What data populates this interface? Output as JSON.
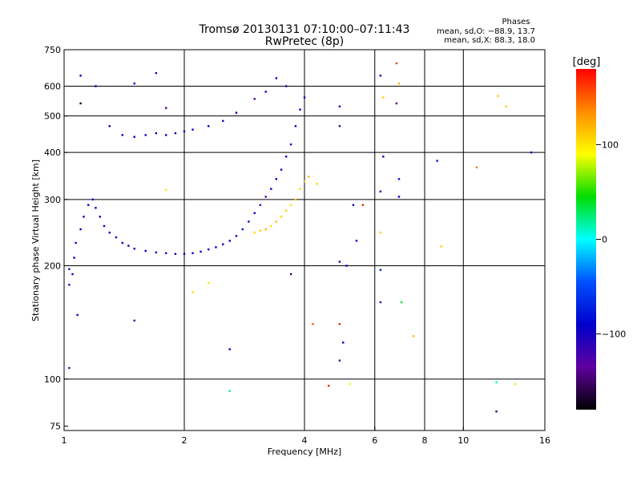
{
  "chart_data": {
    "type": "scatter",
    "title": "Tromsø 20130131 07:10:00–07:11:43",
    "subtitle": "RwPretec (8p)",
    "xlabel": "Frequency [MHz]",
    "ylabel": "Stationary phase Virtual Height [km]",
    "x_scale": "log",
    "y_scale": "log",
    "xlim": [
      1,
      16
    ],
    "ylim": [
      73,
      750
    ],
    "x_ticks": [
      1,
      2,
      4,
      6,
      8,
      10,
      16
    ],
    "x_ticklabels": [
      "1",
      "2",
      "4",
      "6",
      "8",
      "10",
      "16"
    ],
    "y_ticks": [
      75,
      100,
      200,
      300,
      400,
      500,
      600,
      750
    ],
    "y_ticklabels": [
      "75",
      "100",
      "200",
      "300",
      "400",
      "500",
      "600",
      "750"
    ],
    "grid": true,
    "stats": {
      "title": "Phases",
      "line_o": "mean, sd,O: −88.9, 13.7",
      "line_x": "mean, sd,X: 88.3, 18.0"
    },
    "colorbar": {
      "label": "[deg]",
      "range": [
        -180,
        180
      ],
      "ticks": [
        100,
        0,
        -100
      ],
      "ticklabels": [
        "100",
        "0",
        "−100"
      ],
      "colors": [
        "#ff0000",
        "#ff8c00",
        "#ffff00",
        "#00dd00",
        "#00ffff",
        "#0050ff",
        "#0000cc",
        "#6000a0",
        "#000000"
      ]
    },
    "series": [
      {
        "values": [
          {
            "x": 1.03,
            "y": 196,
            "phase": -80
          },
          {
            "x": 1.03,
            "y": 178,
            "phase": -80
          },
          {
            "x": 1.05,
            "y": 190,
            "phase": -85
          },
          {
            "x": 1.06,
            "y": 210,
            "phase": -90
          },
          {
            "x": 1.07,
            "y": 230,
            "phase": -90
          },
          {
            "x": 1.1,
            "y": 250,
            "phase": -95
          },
          {
            "x": 1.12,
            "y": 270,
            "phase": -95
          },
          {
            "x": 1.15,
            "y": 290,
            "phase": -90
          },
          {
            "x": 1.18,
            "y": 300,
            "phase": -88
          },
          {
            "x": 1.2,
            "y": 285,
            "phase": -92
          },
          {
            "x": 1.23,
            "y": 270,
            "phase": -95
          },
          {
            "x": 1.26,
            "y": 255,
            "phase": -93
          },
          {
            "x": 1.3,
            "y": 245,
            "phase": -95
          },
          {
            "x": 1.35,
            "y": 238,
            "phase": -92
          },
          {
            "x": 1.4,
            "y": 230,
            "phase": -95
          },
          {
            "x": 1.45,
            "y": 226,
            "phase": -90
          },
          {
            "x": 1.5,
            "y": 222,
            "phase": -95
          },
          {
            "x": 1.6,
            "y": 219,
            "phase": -92
          },
          {
            "x": 1.7,
            "y": 217,
            "phase": -95
          },
          {
            "x": 1.8,
            "y": 216,
            "phase": -90
          },
          {
            "x": 1.9,
            "y": 215,
            "phase": -95
          },
          {
            "x": 2.0,
            "y": 215,
            "phase": -92
          },
          {
            "x": 2.1,
            "y": 216,
            "phase": -95
          },
          {
            "x": 2.2,
            "y": 218,
            "phase": -90
          },
          {
            "x": 2.3,
            "y": 221,
            "phase": -92
          },
          {
            "x": 2.4,
            "y": 224,
            "phase": -95
          },
          {
            "x": 2.5,
            "y": 228,
            "phase": -92
          },
          {
            "x": 2.6,
            "y": 233,
            "phase": -95
          },
          {
            "x": 2.7,
            "y": 240,
            "phase": -90
          },
          {
            "x": 2.8,
            "y": 250,
            "phase": -92
          },
          {
            "x": 2.9,
            "y": 262,
            "phase": -95
          },
          {
            "x": 3.0,
            "y": 276,
            "phase": -93
          },
          {
            "x": 3.1,
            "y": 290,
            "phase": -120
          },
          {
            "x": 3.2,
            "y": 305,
            "phase": -130
          },
          {
            "x": 3.3,
            "y": 320,
            "phase": -95
          },
          {
            "x": 3.4,
            "y": 340,
            "phase": -92
          },
          {
            "x": 3.5,
            "y": 360,
            "phase": -95
          },
          {
            "x": 3.6,
            "y": 390,
            "phase": -92
          },
          {
            "x": 3.7,
            "y": 420,
            "phase": -95
          },
          {
            "x": 3.8,
            "y": 470,
            "phase": -92
          },
          {
            "x": 3.9,
            "y": 520,
            "phase": -95
          },
          {
            "x": 4.0,
            "y": 560,
            "phase": -95
          },
          {
            "x": 3.0,
            "y": 555,
            "phase": -125
          },
          {
            "x": 3.2,
            "y": 580,
            "phase": -100
          },
          {
            "x": 3.4,
            "y": 630,
            "phase": -95
          },
          {
            "x": 3.6,
            "y": 600,
            "phase": -92
          }
        ]
      },
      {
        "values": [
          {
            "x": 1.2,
            "y": 600,
            "phase": -95
          },
          {
            "x": 1.3,
            "y": 470,
            "phase": -92
          },
          {
            "x": 1.4,
            "y": 445,
            "phase": -95
          },
          {
            "x": 1.5,
            "y": 440,
            "phase": -92
          },
          {
            "x": 1.6,
            "y": 445,
            "phase": -95
          },
          {
            "x": 1.7,
            "y": 450,
            "phase": -90
          },
          {
            "x": 1.8,
            "y": 445,
            "phase": -92
          },
          {
            "x": 1.9,
            "y": 450,
            "phase": -95
          },
          {
            "x": 2.0,
            "y": 455,
            "phase": -92
          },
          {
            "x": 2.1,
            "y": 460,
            "phase": -95
          },
          {
            "x": 2.3,
            "y": 470,
            "phase": -92
          },
          {
            "x": 2.5,
            "y": 485,
            "phase": -95
          },
          {
            "x": 2.7,
            "y": 510,
            "phase": -90
          }
        ]
      },
      {
        "values": [
          {
            "x": 3.0,
            "y": 245,
            "phase": 105
          },
          {
            "x": 3.1,
            "y": 248,
            "phase": 110
          },
          {
            "x": 3.2,
            "y": 250,
            "phase": 120
          },
          {
            "x": 3.3,
            "y": 255,
            "phase": 105
          },
          {
            "x": 3.4,
            "y": 262,
            "phase": 115
          },
          {
            "x": 3.5,
            "y": 270,
            "phase": 105
          },
          {
            "x": 3.6,
            "y": 280,
            "phase": 110
          },
          {
            "x": 3.7,
            "y": 290,
            "phase": 105
          },
          {
            "x": 3.8,
            "y": 300,
            "phase": 110
          },
          {
            "x": 3.9,
            "y": 320,
            "phase": 105
          },
          {
            "x": 4.0,
            "y": 335,
            "phase": 110
          },
          {
            "x": 4.1,
            "y": 345,
            "phase": 115
          },
          {
            "x": 4.3,
            "y": 330,
            "phase": 105
          }
        ]
      },
      {
        "values": [
          {
            "x": 1.03,
            "y": 107,
            "phase": -130
          },
          {
            "x": 1.08,
            "y": 148,
            "phase": -95
          },
          {
            "x": 1.1,
            "y": 640,
            "phase": -95
          },
          {
            "x": 1.1,
            "y": 540,
            "phase": -170
          },
          {
            "x": 1.5,
            "y": 610,
            "phase": -95
          },
          {
            "x": 1.7,
            "y": 650,
            "phase": -110
          },
          {
            "x": 1.8,
            "y": 525,
            "phase": -140
          },
          {
            "x": 1.5,
            "y": 143,
            "phase": -120
          },
          {
            "x": 1.8,
            "y": 318,
            "phase": 100
          },
          {
            "x": 2.1,
            "y": 170,
            "phase": 105
          },
          {
            "x": 2.3,
            "y": 180,
            "phase": 100
          },
          {
            "x": 2.6,
            "y": 120,
            "phase": -95
          },
          {
            "x": 2.6,
            "y": 93,
            "phase": 20
          },
          {
            "x": 3.7,
            "y": 190,
            "phase": -150
          },
          {
            "x": 4.2,
            "y": 140,
            "phase": 150
          },
          {
            "x": 4.9,
            "y": 140,
            "phase": 170
          },
          {
            "x": 4.9,
            "y": 112,
            "phase": -120
          },
          {
            "x": 5.0,
            "y": 125,
            "phase": -95
          },
          {
            "x": 4.6,
            "y": 96,
            "phase": 175
          },
          {
            "x": 5.2,
            "y": 97,
            "phase": 95
          },
          {
            "x": 4.9,
            "y": 470,
            "phase": -150
          },
          {
            "x": 4.9,
            "y": 530,
            "phase": -100
          },
          {
            "x": 5.3,
            "y": 290,
            "phase": -95
          },
          {
            "x": 5.4,
            "y": 233,
            "phase": -95
          },
          {
            "x": 5.6,
            "y": 290,
            "phase": 170
          },
          {
            "x": 4.9,
            "y": 205,
            "phase": -95
          },
          {
            "x": 5.1,
            "y": 200,
            "phase": -95
          },
          {
            "x": 6.2,
            "y": 245,
            "phase": 110
          },
          {
            "x": 6.2,
            "y": 195,
            "phase": -75
          },
          {
            "x": 6.3,
            "y": 390,
            "phase": -95
          },
          {
            "x": 6.2,
            "y": 315,
            "phase": -95
          },
          {
            "x": 6.2,
            "y": 160,
            "phase": -80
          },
          {
            "x": 6.3,
            "y": 560,
            "phase": 110
          },
          {
            "x": 6.2,
            "y": 640,
            "phase": -95
          },
          {
            "x": 6.8,
            "y": 690,
            "phase": 160
          },
          {
            "x": 6.9,
            "y": 610,
            "phase": 120
          },
          {
            "x": 6.8,
            "y": 540,
            "phase": -140
          },
          {
            "x": 6.9,
            "y": 340,
            "phase": -80
          },
          {
            "x": 6.9,
            "y": 305,
            "phase": -95
          },
          {
            "x": 7.0,
            "y": 160,
            "phase": 30
          },
          {
            "x": 7.5,
            "y": 130,
            "phase": 120
          },
          {
            "x": 8.6,
            "y": 380,
            "phase": -80
          },
          {
            "x": 8.8,
            "y": 225,
            "phase": 110
          },
          {
            "x": 10.8,
            "y": 365,
            "phase": 140
          },
          {
            "x": 12.2,
            "y": 565,
            "phase": 110
          },
          {
            "x": 12.8,
            "y": 530,
            "phase": 110
          },
          {
            "x": 12.1,
            "y": 82,
            "phase": -150
          },
          {
            "x": 12.1,
            "y": 98,
            "phase": 10
          },
          {
            "x": 13.5,
            "y": 97,
            "phase": 100
          },
          {
            "x": 14.8,
            "y": 400,
            "phase": -95
          }
        ]
      }
    ]
  }
}
